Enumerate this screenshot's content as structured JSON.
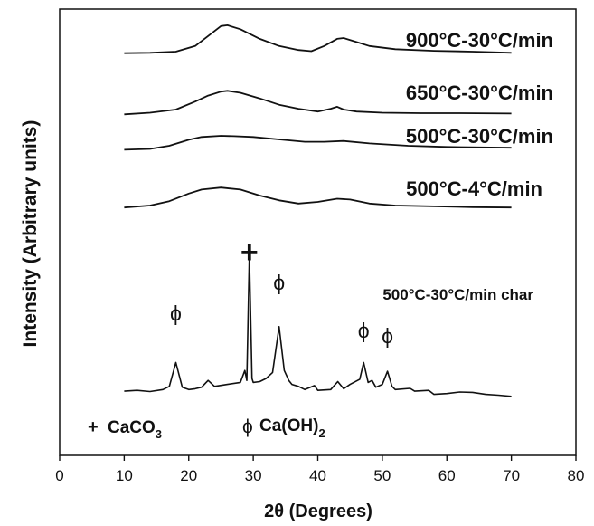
{
  "chart_data": {
    "type": "line",
    "xlabel": "2θ (Degrees)",
    "ylabel": "Intensity (Arbitrary units)",
    "xlim": [
      0,
      80
    ],
    "xticks": [
      "0",
      "10",
      "20",
      "30",
      "40",
      "50",
      "60",
      "70",
      "80"
    ],
    "grid": false,
    "series": [
      {
        "name": "900°C-30°C/min",
        "x": [
          10,
          14,
          18,
          21,
          23,
          25,
          26,
          28,
          31,
          34,
          37,
          39,
          41,
          43,
          44,
          46,
          48,
          52,
          58,
          64,
          70
        ],
        "values": [
          0.62,
          0.63,
          0.66,
          0.8,
          1.05,
          1.3,
          1.32,
          1.22,
          0.98,
          0.8,
          0.7,
          0.67,
          0.8,
          0.98,
          1.0,
          0.9,
          0.8,
          0.72,
          0.68,
          0.66,
          0.63
        ]
      },
      {
        "name": "650°C-30°C/min",
        "x": [
          10,
          14,
          18,
          21,
          23,
          25,
          26,
          28,
          31,
          34,
          37,
          40,
          42,
          43,
          44,
          46,
          50,
          56,
          62,
          70
        ],
        "values": [
          0.38,
          0.42,
          0.5,
          0.7,
          0.85,
          0.95,
          0.97,
          0.92,
          0.78,
          0.62,
          0.52,
          0.45,
          0.52,
          0.57,
          0.5,
          0.45,
          0.42,
          0.41,
          0.41,
          0.4
        ]
      },
      {
        "name": "500°C-30°C/min",
        "x": [
          10,
          14,
          17,
          20,
          22,
          25,
          27,
          30,
          34,
          38,
          41,
          44,
          48,
          54,
          60,
          70
        ],
        "values": [
          0.4,
          0.42,
          0.5,
          0.65,
          0.72,
          0.75,
          0.74,
          0.72,
          0.66,
          0.6,
          0.6,
          0.62,
          0.56,
          0.5,
          0.47,
          0.45
        ]
      },
      {
        "name": "500°C-4°C/min",
        "x": [
          10,
          14,
          17,
          20,
          22,
          25,
          28,
          31,
          34,
          37,
          40,
          43,
          45,
          48,
          52,
          58,
          64,
          70
        ],
        "values": [
          0.2,
          0.25,
          0.36,
          0.55,
          0.65,
          0.7,
          0.65,
          0.5,
          0.38,
          0.3,
          0.34,
          0.42,
          0.4,
          0.3,
          0.25,
          0.23,
          0.21,
          0.2
        ]
      },
      {
        "name": "500°C-30°C/min char",
        "x": [
          10,
          12,
          14,
          16,
          17,
          18,
          19,
          20,
          21,
          22,
          23,
          24,
          26,
          28,
          28.7,
          29,
          29.4,
          29.8,
          30,
          31,
          32,
          33,
          34,
          34.8,
          35.5,
          36,
          37,
          38,
          39.5,
          40,
          42,
          43.1,
          44,
          45,
          46.5,
          47.1,
          47.8,
          48.4,
          49,
          50,
          50.8,
          51.5,
          52,
          54.3,
          55,
          57.2,
          58,
          60,
          62,
          64,
          66,
          68,
          70
        ],
        "values": [
          0.18,
          0.2,
          0.17,
          0.22,
          0.3,
          0.9,
          0.28,
          0.22,
          0.24,
          0.28,
          0.45,
          0.3,
          0.35,
          0.4,
          0.7,
          0.45,
          3.6,
          0.5,
          0.4,
          0.42,
          0.5,
          0.65,
          1.8,
          0.7,
          0.45,
          0.35,
          0.3,
          0.22,
          0.32,
          0.2,
          0.22,
          0.42,
          0.24,
          0.35,
          0.48,
          0.9,
          0.4,
          0.45,
          0.28,
          0.35,
          0.68,
          0.3,
          0.22,
          0.25,
          0.18,
          0.2,
          0.1,
          0.12,
          0.16,
          0.15,
          0.1,
          0.08,
          0.05
        ]
      }
    ],
    "annotations": {
      "plus_symbol": "+",
      "phi_symbol": "ϕ",
      "legend_plus_marker": "+",
      "legend_plus_text": "CaCO",
      "legend_plus_sub": "3",
      "legend_phi_marker": "ϕ",
      "legend_phi_text": "Ca(OH)",
      "legend_phi_sub": "2"
    }
  }
}
